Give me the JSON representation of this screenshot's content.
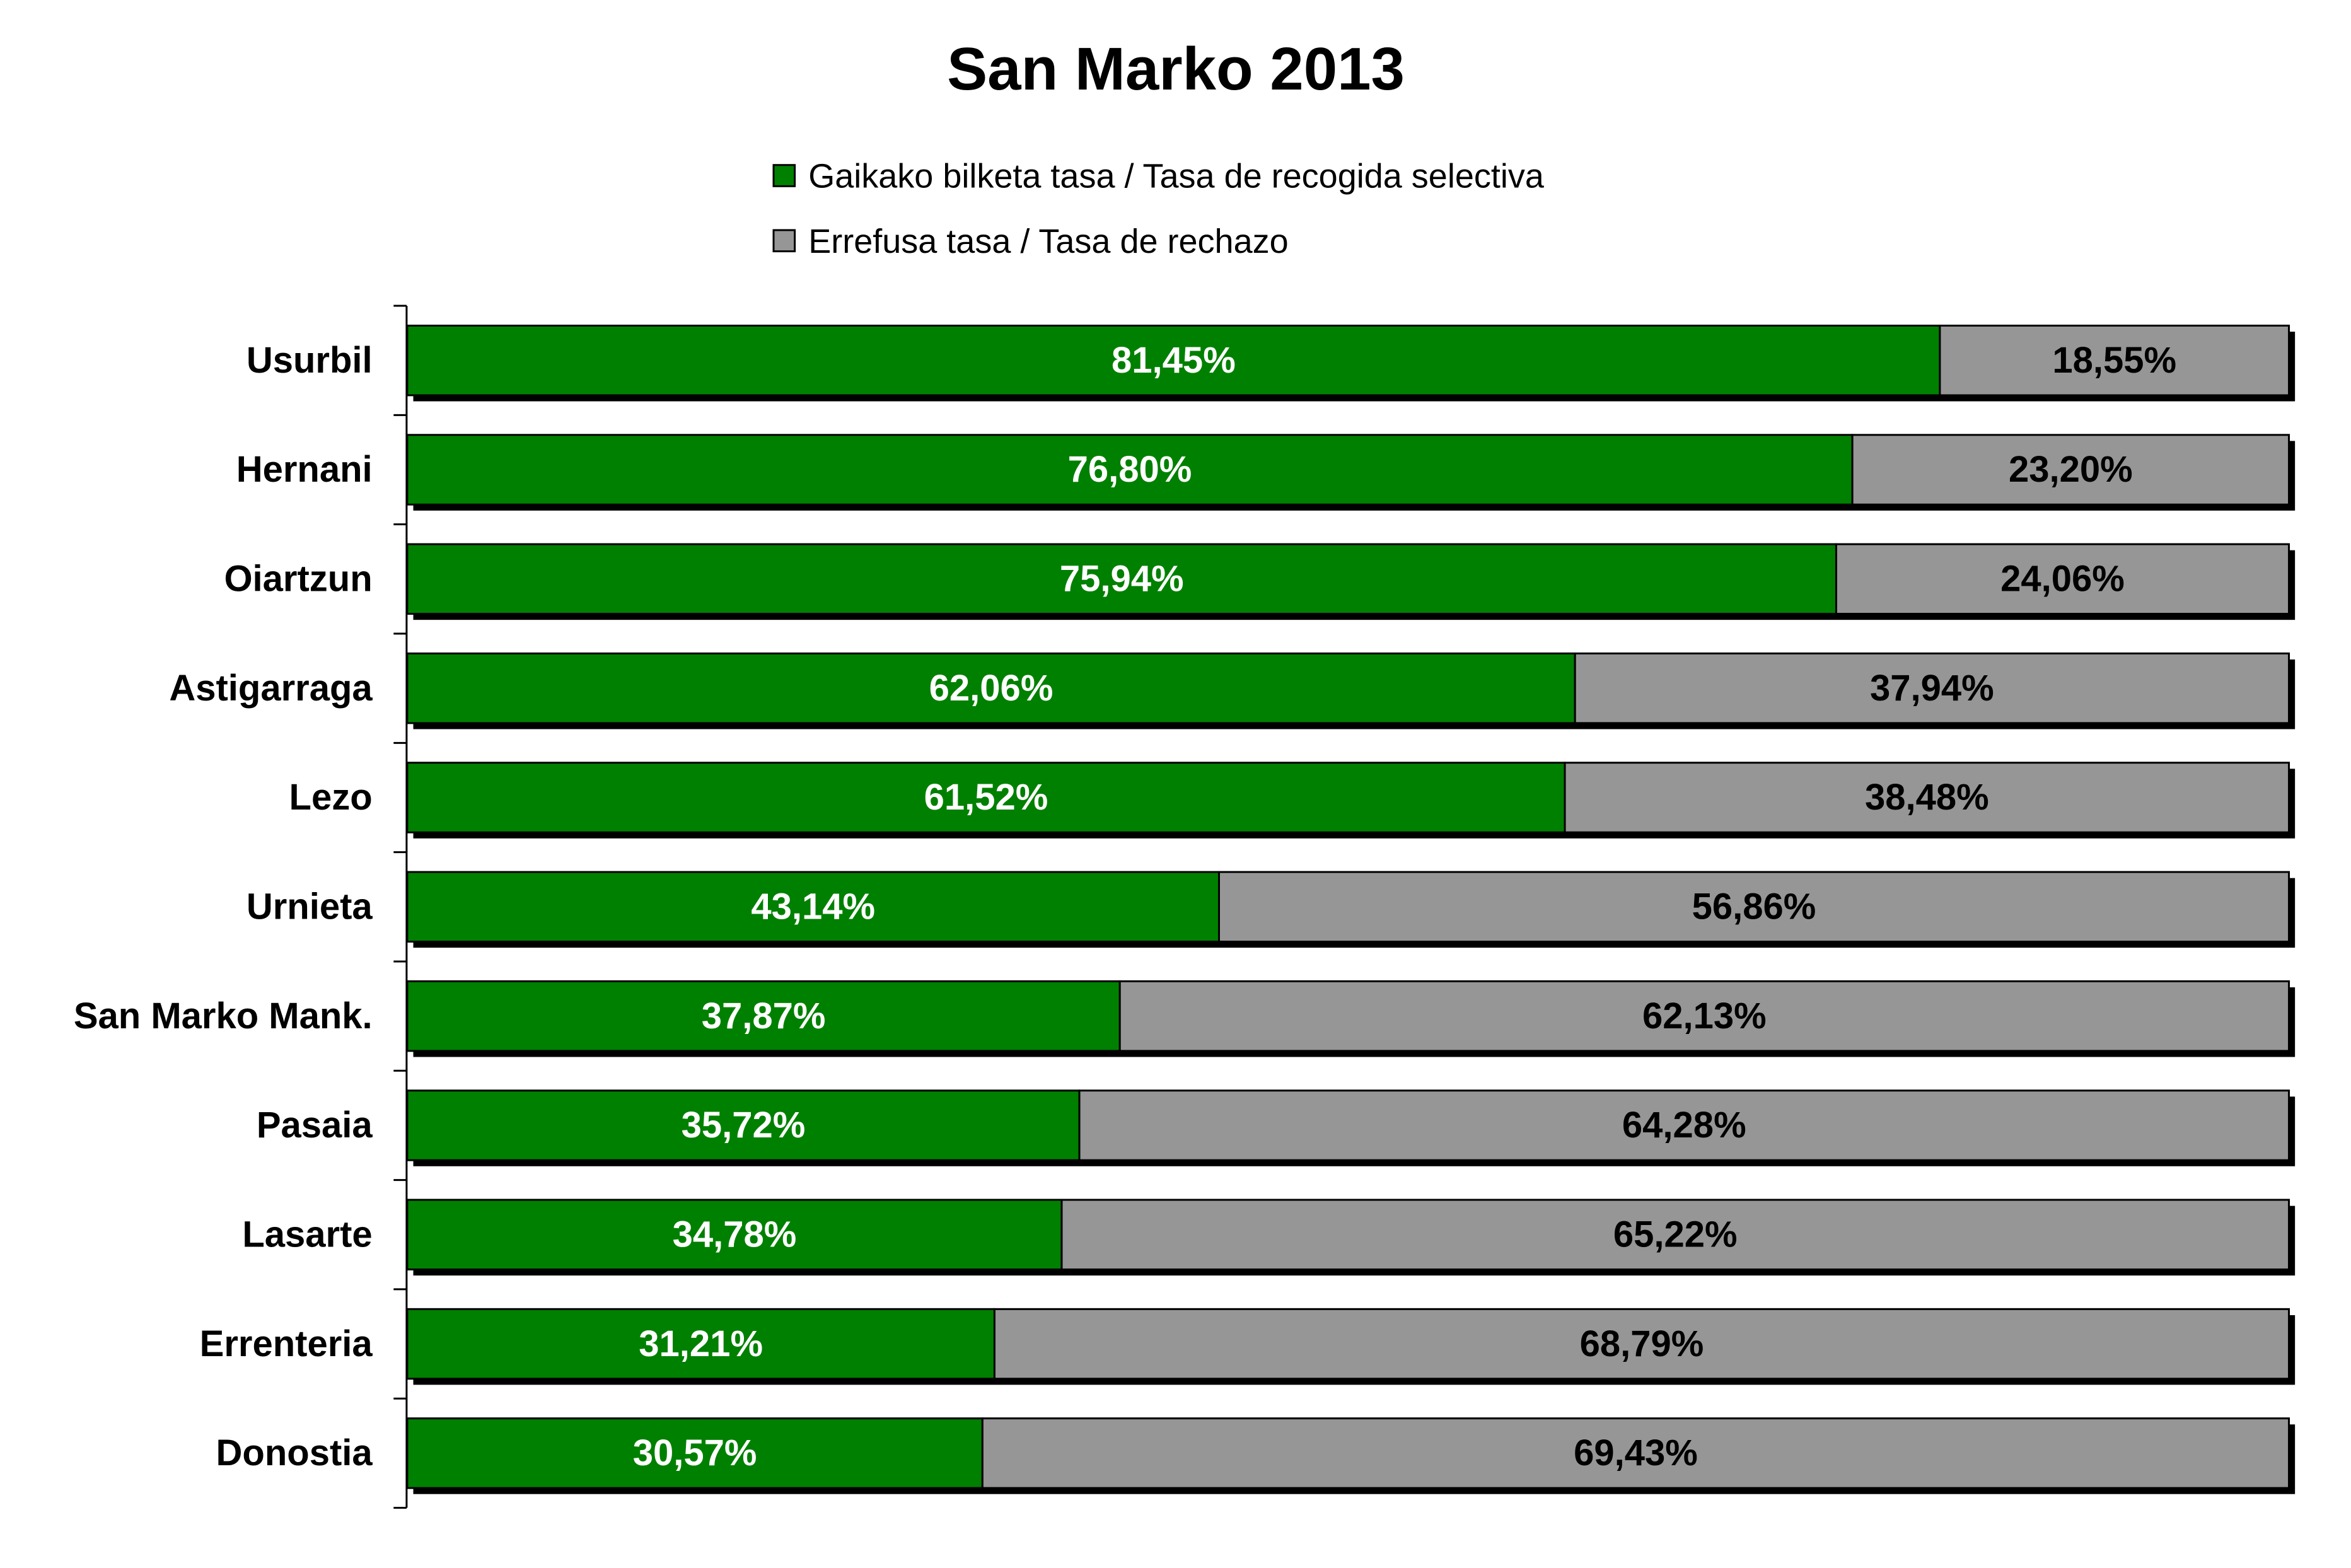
{
  "chart_data": {
    "type": "bar",
    "orientation": "horizontal",
    "stacked": true,
    "percent_stacked": true,
    "title": "San Marko 2013",
    "legend_position": "top",
    "grid": false,
    "xlabel": "",
    "ylabel": "",
    "xlim": [
      0,
      100
    ],
    "categories": [
      "Usurbil",
      "Hernani",
      "Oiartzun",
      "Astigarraga",
      "Lezo",
      "Urnieta",
      "San Marko Mank.",
      "Pasaia",
      "Lasarte",
      "Errenteria",
      "Donostia"
    ],
    "series": [
      {
        "name": "Gaikako bilketa tasa / Tasa de recogida selectiva",
        "color": "#008000",
        "label_color": "#ffffff",
        "values": [
          81.45,
          76.8,
          75.94,
          62.06,
          61.52,
          43.14,
          37.87,
          35.72,
          34.78,
          31.21,
          30.57
        ],
        "labels": [
          "81,45%",
          "76,80%",
          "75,94%",
          "62,06%",
          "61,52%",
          "43,14%",
          "37,87%",
          "35,72%",
          "34,78%",
          "31,21%",
          "30,57%"
        ]
      },
      {
        "name": "Errefusa tasa / Tasa de rechazo",
        "color": "#969696",
        "label_color": "#000000",
        "values": [
          18.55,
          23.2,
          24.06,
          37.94,
          38.48,
          56.86,
          62.13,
          64.28,
          65.22,
          68.79,
          69.43
        ],
        "labels": [
          "18,55%",
          "23,20%",
          "24,06%",
          "37,94%",
          "38,48%",
          "56,86%",
          "62,13%",
          "64,28%",
          "65,22%",
          "68,79%",
          "69,43%"
        ]
      }
    ]
  }
}
